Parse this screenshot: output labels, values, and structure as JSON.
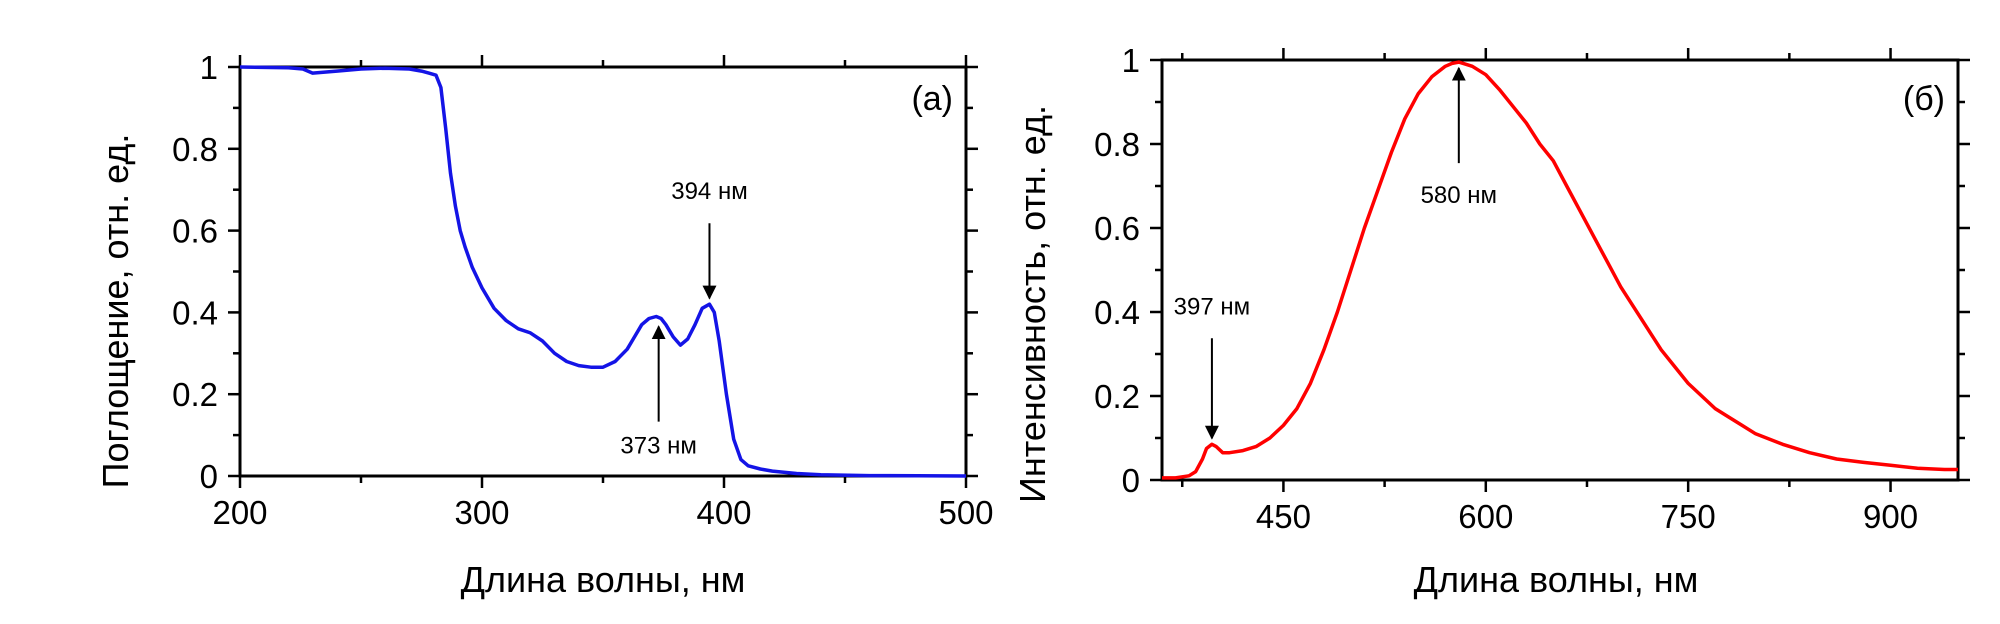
{
  "chart_data": [
    {
      "type": "line",
      "panel_label": "(а)",
      "xlabel": "Длина волны, нм",
      "ylabel": "Поглощение, отн. ед.",
      "xlim": [
        200,
        500
      ],
      "ylim": [
        0,
        1
      ],
      "x_ticks": [
        200,
        300,
        400,
        500
      ],
      "y_ticks": [
        0,
        0.2,
        0.4,
        0.6,
        0.8,
        1
      ],
      "y_tick_labels": [
        "0",
        "0.2",
        "0.4",
        "0.6",
        "0.8",
        "1"
      ],
      "grid": false,
      "series": [
        {
          "color": "#1414e6",
          "x": [
            200,
            220,
            226,
            230,
            240,
            250,
            260,
            270,
            275,
            278,
            281,
            283,
            285,
            287,
            289,
            291,
            293,
            296,
            300,
            305,
            310,
            315,
            320,
            325,
            330,
            335,
            340,
            345,
            350,
            355,
            360,
            363,
            366,
            369,
            372,
            374,
            376,
            379,
            382,
            385,
            388,
            391,
            394,
            396,
            398,
            401,
            404,
            407,
            410,
            415,
            420,
            430,
            440,
            460,
            480,
            500
          ],
          "y": [
            1.0,
            0.998,
            0.995,
            0.985,
            0.99,
            0.995,
            0.997,
            0.995,
            0.99,
            0.985,
            0.98,
            0.95,
            0.85,
            0.74,
            0.66,
            0.6,
            0.56,
            0.51,
            0.46,
            0.41,
            0.38,
            0.36,
            0.35,
            0.33,
            0.3,
            0.28,
            0.27,
            0.266,
            0.266,
            0.28,
            0.31,
            0.34,
            0.37,
            0.385,
            0.39,
            0.385,
            0.37,
            0.34,
            0.32,
            0.335,
            0.37,
            0.41,
            0.42,
            0.4,
            0.33,
            0.2,
            0.09,
            0.04,
            0.025,
            0.017,
            0.012,
            0.006,
            0.003,
            0.001,
            0.0005,
            0.0
          ]
        }
      ],
      "annotations": [
        {
          "text": "394 нм",
          "x": 394,
          "y": 0.42,
          "direction": "down"
        },
        {
          "text": "373 нм",
          "x": 373,
          "y": 0.38,
          "direction": "up"
        }
      ]
    },
    {
      "type": "line",
      "panel_label": "(б)",
      "xlabel": "Длина волны, нм",
      "ylabel": "Интенсивность, отн. ед.",
      "xlim": [
        360,
        950
      ],
      "ylim": [
        0,
        1
      ],
      "x_ticks": [
        450,
        600,
        750,
        900
      ],
      "y_ticks": [
        0,
        0.2,
        0.4,
        0.6,
        0.8,
        1
      ],
      "y_tick_labels": [
        "0",
        "0.2",
        "0.4",
        "0.6",
        "0.8",
        "1"
      ],
      "grid": false,
      "series": [
        {
          "color": "#ff0000",
          "x": [
            360,
            370,
            380,
            385,
            390,
            393,
            397,
            400,
            405,
            410,
            420,
            430,
            440,
            450,
            460,
            470,
            480,
            490,
            500,
            510,
            520,
            530,
            540,
            550,
            560,
            570,
            575,
            580,
            585,
            590,
            600,
            610,
            620,
            630,
            640,
            650,
            660,
            670,
            680,
            690,
            700,
            710,
            720,
            730,
            740,
            750,
            760,
            770,
            780,
            790,
            800,
            820,
            840,
            860,
            880,
            900,
            920,
            940,
            950
          ],
          "y": [
            0.005,
            0.005,
            0.01,
            0.02,
            0.05,
            0.075,
            0.085,
            0.08,
            0.065,
            0.065,
            0.07,
            0.08,
            0.1,
            0.13,
            0.17,
            0.23,
            0.31,
            0.4,
            0.5,
            0.6,
            0.69,
            0.78,
            0.86,
            0.92,
            0.96,
            0.985,
            0.992,
            0.995,
            0.99,
            0.985,
            0.965,
            0.93,
            0.89,
            0.85,
            0.8,
            0.76,
            0.7,
            0.64,
            0.58,
            0.52,
            0.46,
            0.41,
            0.36,
            0.31,
            0.27,
            0.23,
            0.2,
            0.17,
            0.15,
            0.13,
            0.11,
            0.085,
            0.065,
            0.05,
            0.042,
            0.035,
            0.028,
            0.025,
            0.025
          ]
        }
      ],
      "annotations": [
        {
          "text": "580 нм",
          "x": 580,
          "y": 0.995,
          "direction": "up"
        },
        {
          "text": "397 нм",
          "x": 397,
          "y": 0.085,
          "direction": "down"
        }
      ]
    }
  ]
}
